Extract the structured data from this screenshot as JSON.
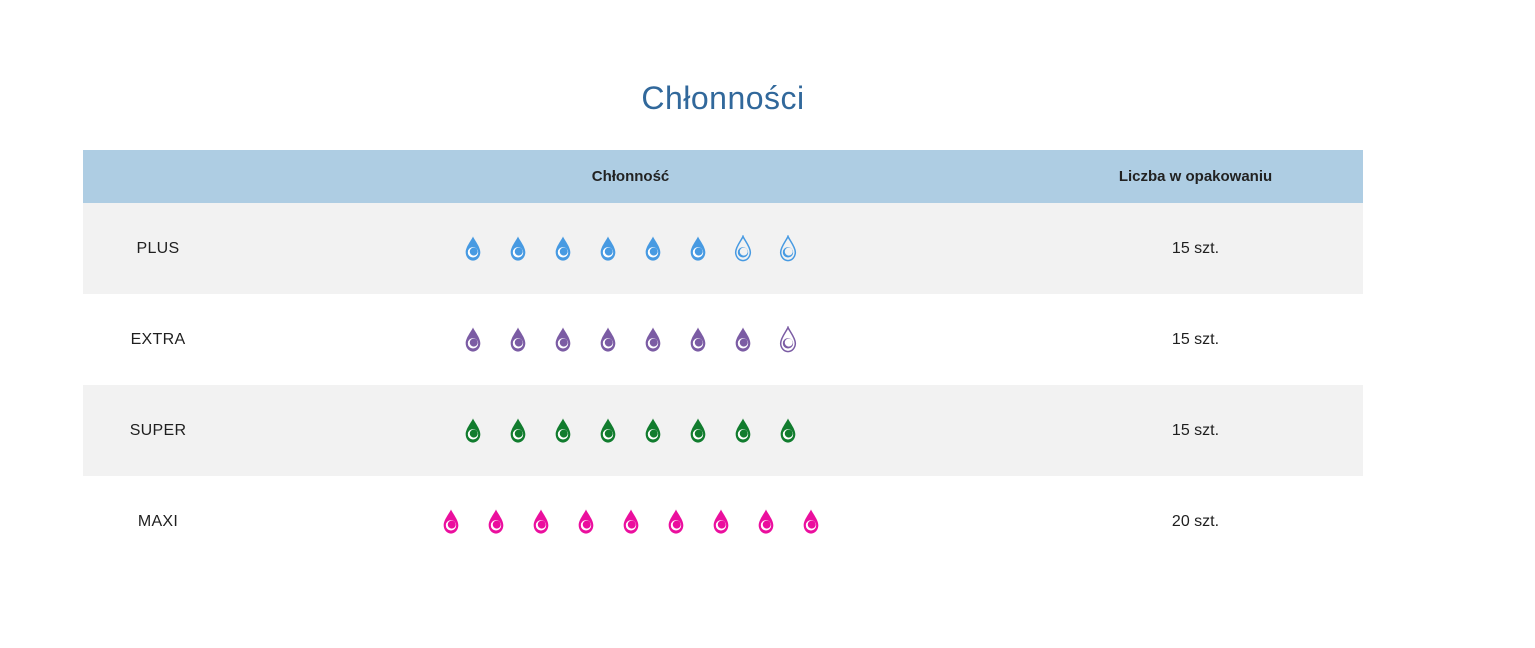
{
  "page": {
    "title": "Chłonności",
    "title_color": "#31689b",
    "background": "#ffffff"
  },
  "table": {
    "header": {
      "label_column": "",
      "absorbency_column": "Chłonność",
      "count_column": "Liczba w opakowaniu",
      "header_bg": "#aecde3",
      "stripe_bg": "#f2f2f2"
    },
    "rows": [
      {
        "label": "PLUS",
        "drop_color": "#479ae2",
        "drops_filled": 6,
        "drops_empty": 2,
        "count": "15 szt.",
        "bg": "#f2f2f2"
      },
      {
        "label": "EXTRA",
        "drop_color": "#7b5ca4",
        "drops_filled": 7,
        "drops_empty": 1,
        "count": "15 szt.",
        "bg": "#ffffff"
      },
      {
        "label": "SUPER",
        "drop_color": "#117c2e",
        "drops_filled": 8,
        "drops_empty": 0,
        "count": "15 szt.",
        "bg": "#f2f2f2"
      },
      {
        "label": "MAXI",
        "drop_color": "#eb0f9e",
        "drops_filled": 9,
        "drops_empty": 0,
        "count": "20 szt.",
        "bg": "#ffffff"
      }
    ]
  }
}
